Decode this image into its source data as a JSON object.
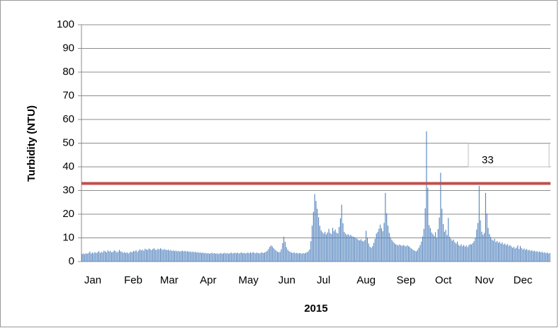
{
  "chart_data": {
    "type": "bar",
    "y_label": "Turbidity (NTU)",
    "x_label": "2015",
    "color": "#4f81bd",
    "threshold": 33,
    "threshold_color": "#c0504d",
    "grid": true,
    "ylim": [
      0,
      100
    ],
    "yticks": [
      0,
      10,
      20,
      30,
      40,
      50,
      60,
      70,
      80,
      90,
      100
    ],
    "categories": [
      "Jan",
      null,
      null,
      null,
      null,
      null,
      null,
      null,
      null,
      null,
      null,
      null,
      null,
      null,
      null,
      null,
      null,
      null,
      null,
      null,
      null,
      null,
      null,
      null,
      null,
      null,
      null,
      null,
      null,
      null,
      null,
      "Feb",
      null,
      null,
      null,
      null,
      null,
      null,
      null,
      null,
      null,
      null,
      null,
      null,
      null,
      null,
      null,
      null,
      null,
      null,
      null,
      null,
      null,
      null,
      null,
      null,
      null,
      null,
      null,
      "Mar",
      null,
      null,
      null,
      null,
      null,
      null,
      null,
      null,
      null,
      null,
      null,
      null,
      null,
      null,
      null,
      null,
      null,
      null,
      null,
      null,
      null,
      null,
      null,
      null,
      null,
      null,
      null,
      null,
      null,
      null,
      "Apr",
      null,
      null,
      null,
      null,
      null,
      null,
      null,
      null,
      null,
      null,
      null,
      null,
      null,
      null,
      null,
      null,
      null,
      null,
      null,
      null,
      null,
      null,
      null,
      null,
      null,
      null,
      null,
      null,
      null,
      "May",
      null,
      null,
      null,
      null,
      null,
      null,
      null,
      null,
      null,
      null,
      null,
      null,
      null,
      null,
      null,
      null,
      null,
      null,
      null,
      null,
      null,
      null,
      null,
      null,
      null,
      null,
      null,
      null,
      null,
      null,
      "Jun",
      null,
      null,
      null,
      null,
      null,
      null,
      null,
      null,
      null,
      null,
      null,
      null,
      null,
      null,
      null,
      null,
      null,
      null,
      null,
      null,
      null,
      null,
      null,
      null,
      null,
      null,
      null,
      null,
      null,
      "Jul",
      null,
      null,
      null,
      null,
      null,
      null,
      null,
      null,
      null,
      null,
      null,
      null,
      null,
      null,
      null,
      null,
      null,
      null,
      null,
      null,
      null,
      null,
      null,
      null,
      null,
      null,
      null,
      null,
      null,
      null,
      "Aug",
      null,
      null,
      null,
      null,
      null,
      null,
      null,
      null,
      null,
      null,
      null,
      null,
      null,
      null,
      null,
      null,
      null,
      null,
      null,
      null,
      null,
      null,
      null,
      null,
      null,
      null,
      null,
      null,
      null,
      null,
      "Sep",
      null,
      null,
      null,
      null,
      null,
      null,
      null,
      null,
      null,
      null,
      null,
      null,
      null,
      null,
      null,
      null,
      null,
      null,
      null,
      null,
      null,
      null,
      null,
      null,
      null,
      null,
      null,
      null,
      null,
      "Oct",
      null,
      null,
      null,
      null,
      null,
      null,
      null,
      null,
      null,
      null,
      null,
      null,
      null,
      null,
      null,
      null,
      null,
      null,
      null,
      null,
      null,
      null,
      null,
      null,
      null,
      null,
      null,
      null,
      null,
      null,
      "Nov",
      null,
      null,
      null,
      null,
      null,
      null,
      null,
      null,
      null,
      null,
      null,
      null,
      null,
      null,
      null,
      null,
      null,
      null,
      null,
      null,
      null,
      null,
      null,
      null,
      null,
      null,
      null,
      null,
      null,
      "Dec",
      null,
      null,
      null,
      null,
      null,
      null,
      null,
      null,
      null,
      null,
      null,
      null,
      null,
      null,
      null,
      null,
      null,
      null,
      null,
      null,
      null,
      null,
      null,
      null,
      null,
      null,
      null,
      null,
      null,
      null
    ],
    "values": [
      3.2,
      3.4,
      3.1,
      3.5,
      3.3,
      3.6,
      4.2,
      3.4,
      3.8,
      3.5,
      4.0,
      3.6,
      3.9,
      4.4,
      3.7,
      4.1,
      3.8,
      4.6,
      4.3,
      3.9,
      4.8,
      4.2,
      4.5,
      3.9,
      4.1,
      4.7,
      4.4,
      3.8,
      4.2,
      4.9,
      4.3,
      4.1,
      3.7,
      4.0,
      3.6,
      3.9,
      3.4,
      3.8,
      4.2,
      3.9,
      4.5,
      4.3,
      4.8,
      4.1,
      4.6,
      5.2,
      4.7,
      5.0,
      4.6,
      5.4,
      5.1,
      4.9,
      5.5,
      5.2,
      4.8,
      5.3,
      5.6,
      5.0,
      4.9,
      5.4,
      5.1,
      5.6,
      5.2,
      4.9,
      5.3,
      5.0,
      4.8,
      5.1,
      4.6,
      4.9,
      4.5,
      4.7,
      4.4,
      4.6,
      4.3,
      4.5,
      4.2,
      4.4,
      4.6,
      4.3,
      4.5,
      4.2,
      4.4,
      4.1,
      4.3,
      4.0,
      4.2,
      3.9,
      4.1,
      3.8,
      4.0,
      3.7,
      3.9,
      3.6,
      3.8,
      3.5,
      3.7,
      3.4,
      3.6,
      3.3,
      3.5,
      3.7,
      3.4,
      3.6,
      3.3,
      3.5,
      3.2,
      3.4,
      3.6,
      3.3,
      3.5,
      3.7,
      3.4,
      3.6,
      3.3,
      3.5,
      3.8,
      3.4,
      3.6,
      3.7,
      3.5,
      3.8,
      3.4,
      3.6,
      3.9,
      3.5,
      3.7,
      3.4,
      3.6,
      3.8,
      3.5,
      3.9,
      3.6,
      4.0,
      3.7,
      3.5,
      3.8,
      3.6,
      3.4,
      3.7,
      3.9,
      3.6,
      3.8,
      4.1,
      4.5,
      5.3,
      6.2,
      6.8,
      6.4,
      5.7,
      5.1,
      4.6,
      4.2,
      3.9,
      4.1,
      5.2,
      7.8,
      10.5,
      8.3,
      6.1,
      5.0,
      4.4,
      4.1,
      3.8,
      3.6,
      3.9,
      3.5,
      3.7,
      3.4,
      3.6,
      3.5,
      3.3,
      3.6,
      3.4,
      3.7,
      3.9,
      4.3,
      5.1,
      8.6,
      15.2,
      21.0,
      28.5,
      25.6,
      22.3,
      18.7,
      15.1,
      13.2,
      12.4,
      11.8,
      12.6,
      11.5,
      12.3,
      13.8,
      12.1,
      11.6,
      14.2,
      12.8,
      13.5,
      12.2,
      11.9,
      14.6,
      18.3,
      24.0,
      16.2,
      12.5,
      11.8,
      11.2,
      11.6,
      10.9,
      11.3,
      10.7,
      10.5,
      10.3,
      10.1,
      9.6,
      9.2,
      8.9,
      9.4,
      8.7,
      8.5,
      9.1,
      13.0,
      10.2,
      7.6,
      6.3,
      5.8,
      6.5,
      7.9,
      9.6,
      11.8,
      12.5,
      13.9,
      15.6,
      14.1,
      12.8,
      16.3,
      29.0,
      20.4,
      15.2,
      12.1,
      10.3,
      9.2,
      8.4,
      7.8,
      7.3,
      7.1,
      6.8,
      7.2,
      6.9,
      6.6,
      7.0,
      6.7,
      6.4,
      6.9,
      6.5,
      6.1,
      5.6,
      5.2,
      4.8,
      4.5,
      4.3,
      4.9,
      5.8,
      6.9,
      8.4,
      10.6,
      13.8,
      22.5,
      55.0,
      31.2,
      15.4,
      14.1,
      12.3,
      11.6,
      10.8,
      12.4,
      10.2,
      13.7,
      18.6,
      37.5,
      22.3,
      15.8,
      12.6,
      13.4,
      11.2,
      18.4,
      10.5,
      9.6,
      8.8,
      9.3,
      8.2,
      7.6,
      8.4,
      7.1,
      6.6,
      7.3,
      6.5,
      7.0,
      6.3,
      6.8,
      6.1,
      6.9,
      7.4,
      7.2,
      7.8,
      8.6,
      10.2,
      13.5,
      16.3,
      32.0,
      17.4,
      12.6,
      11.3,
      12.1,
      29.0,
      20.3,
      14.2,
      11.6,
      10.4,
      9.3,
      8.8,
      9.6,
      8.2,
      8.7,
      7.9,
      8.3,
      7.5,
      8.1,
      7.2,
      7.6,
      6.9,
      7.4,
      6.6,
      7.0,
      6.4,
      5.8,
      6.2,
      5.5,
      5.9,
      6.8,
      5.3,
      6.6,
      5.7,
      5.1,
      5.5,
      4.9,
      5.3,
      4.7,
      5.0,
      4.5,
      4.8,
      4.3,
      4.6,
      4.2,
      4.4,
      4.0,
      4.3,
      3.9,
      4.1,
      3.7,
      3.9,
      3.5,
      3.8,
      3.4,
      3.6
    ]
  }
}
